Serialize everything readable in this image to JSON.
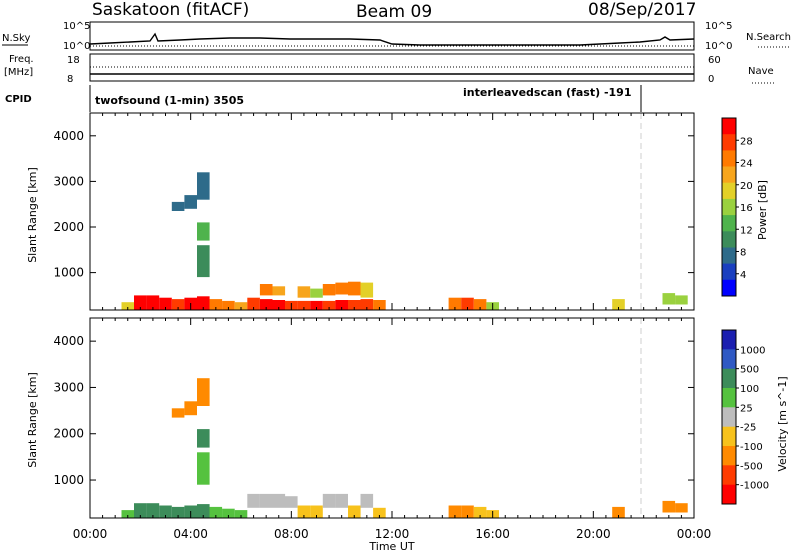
{
  "header": {
    "station": "Saskatoon (fitACF)",
    "beam": "Beam 09",
    "date": "08/Sep/2017"
  },
  "top_panels": {
    "nsky_label": "N.Sky",
    "nsky_ticks": [
      "10^5",
      "10^0"
    ],
    "nsearch_label": "N.Search",
    "nsearch_ticks": [
      "10^5",
      "10^0"
    ],
    "freq_label": "Freq.",
    "freq_unit": "[MHz]",
    "freq_ticks": [
      "18",
      "8"
    ],
    "nave_label": "Nave",
    "nave_ticks": [
      "60",
      "0"
    ],
    "cpid_label": "CPID",
    "cpid_programs": [
      {
        "name": "twofsound (1-min) 3505",
        "start_hour": 0
      },
      {
        "name": "interleavedscan (fast) -191",
        "start_hour": 22
      }
    ]
  },
  "chart_data": [
    {
      "type": "heatmap",
      "title": "",
      "xlabel": "Time UT",
      "ylabel": "Slant Range [km]",
      "xlim": [
        0,
        24
      ],
      "ylim": [
        180,
        4500
      ],
      "x_tick_labels": [
        "00:00",
        "04:00",
        "08:00",
        "12:00",
        "16:00",
        "20:00",
        "00:00"
      ],
      "y_ticks": [
        1000,
        2000,
        3000,
        4000
      ],
      "colorbar": {
        "label": "Power [dB]",
        "ticks": [
          "28",
          "24",
          "20",
          "16",
          "12",
          "8",
          "4"
        ],
        "range": [
          0,
          30
        ],
        "colors": [
          "#0000ff",
          "#1a3fbf",
          "#2e6b8a",
          "#3c8c5a",
          "#4fb34c",
          "#9ad13f",
          "#e3d028",
          "#f7a51c",
          "#ff7a00",
          "#ff3b00",
          "#ff0000"
        ]
      },
      "cells": [
        {
          "t": 1.5,
          "r0": 180,
          "r1": 350,
          "v": 18
        },
        {
          "t": 2.0,
          "r0": 180,
          "r1": 500,
          "v": 28
        },
        {
          "t": 2.5,
          "r0": 180,
          "r1": 500,
          "v": 29
        },
        {
          "t": 3.0,
          "r0": 180,
          "r1": 450,
          "v": 28
        },
        {
          "t": 3.5,
          "r0": 180,
          "r1": 420,
          "v": 27
        },
        {
          "t": 4.0,
          "r0": 180,
          "r1": 450,
          "v": 28
        },
        {
          "t": 4.5,
          "r0": 180,
          "r1": 480,
          "v": 29
        },
        {
          "t": 5.0,
          "r0": 180,
          "r1": 420,
          "v": 24
        },
        {
          "t": 5.5,
          "r0": 180,
          "r1": 380,
          "v": 22
        },
        {
          "t": 6.0,
          "r0": 180,
          "r1": 350,
          "v": 20
        },
        {
          "t": 6.5,
          "r0": 180,
          "r1": 450,
          "v": 27
        },
        {
          "t": 7.0,
          "r0": 180,
          "r1": 420,
          "v": 28
        },
        {
          "t": 7.5,
          "r0": 180,
          "r1": 400,
          "v": 28
        },
        {
          "t": 8.0,
          "r0": 180,
          "r1": 380,
          "v": 27
        },
        {
          "t": 8.5,
          "r0": 180,
          "r1": 380,
          "v": 26
        },
        {
          "t": 9.0,
          "r0": 180,
          "r1": 380,
          "v": 28
        },
        {
          "t": 9.5,
          "r0": 180,
          "r1": 380,
          "v": 27
        },
        {
          "t": 10.0,
          "r0": 180,
          "r1": 400,
          "v": 28
        },
        {
          "t": 10.5,
          "r0": 180,
          "r1": 400,
          "v": 26
        },
        {
          "t": 11.0,
          "r0": 180,
          "r1": 420,
          "v": 27
        },
        {
          "t": 11.5,
          "r0": 180,
          "r1": 400,
          "v": 24
        },
        {
          "t": 7.0,
          "r0": 500,
          "r1": 750,
          "v": 22
        },
        {
          "t": 7.5,
          "r0": 500,
          "r1": 700,
          "v": 20
        },
        {
          "t": 8.5,
          "r0": 450,
          "r1": 700,
          "v": 21
        },
        {
          "t": 9.0,
          "r0": 450,
          "r1": 650,
          "v": 16
        },
        {
          "t": 9.5,
          "r0": 500,
          "r1": 750,
          "v": 22
        },
        {
          "t": 10.0,
          "r0": 520,
          "r1": 780,
          "v": 24
        },
        {
          "t": 10.5,
          "r0": 500,
          "r1": 800,
          "v": 22
        },
        {
          "t": 11.0,
          "r0": 450,
          "r1": 780,
          "v": 18
        },
        {
          "t": 3.5,
          "r0": 2350,
          "r1": 2550,
          "v": 6
        },
        {
          "t": 4.0,
          "r0": 2400,
          "r1": 2700,
          "v": 8
        },
        {
          "t": 4.5,
          "r0": 2600,
          "r1": 3200,
          "v": 8
        },
        {
          "t": 4.5,
          "r0": 900,
          "r1": 1600,
          "v": 10
        },
        {
          "t": 4.5,
          "r0": 1700,
          "r1": 2100,
          "v": 12
        },
        {
          "t": 14.5,
          "r0": 180,
          "r1": 450,
          "v": 24
        },
        {
          "t": 15.0,
          "r0": 180,
          "r1": 450,
          "v": 26
        },
        {
          "t": 15.5,
          "r0": 180,
          "r1": 420,
          "v": 24
        },
        {
          "t": 16.0,
          "r0": 180,
          "r1": 350,
          "v": 14
        },
        {
          "t": 21.0,
          "r0": 180,
          "r1": 420,
          "v": 18
        },
        {
          "t": 23.0,
          "r0": 300,
          "r1": 550,
          "v": 16
        },
        {
          "t": 23.5,
          "r0": 300,
          "r1": 500,
          "v": 14
        }
      ]
    },
    {
      "type": "heatmap",
      "title": "",
      "xlabel": "Time UT",
      "ylabel": "Slant Range [km]",
      "xlim": [
        0,
        24
      ],
      "ylim": [
        180,
        4500
      ],
      "x_tick_labels": [
        "00:00",
        "04:00",
        "08:00",
        "12:00",
        "16:00",
        "20:00",
        "00:00"
      ],
      "y_ticks": [
        1000,
        2000,
        3000,
        4000
      ],
      "colorbar": {
        "label": "Velocity [m s^-1]",
        "ticks": [
          "1000",
          "500",
          "100",
          "25",
          "-25",
          "-100",
          "-500",
          "-1000"
        ],
        "colors": [
          "#1b1fb0",
          "#2f59c4",
          "#3c8c5a",
          "#55c23f",
          "#bdbdbd",
          "#f7c21c",
          "#ff8a00",
          "#ff3b00",
          "#ff0000"
        ]
      },
      "cells": [
        {
          "t": 1.5,
          "r0": 180,
          "r1": 350,
          "v": 60
        },
        {
          "t": 2.0,
          "r0": 180,
          "r1": 500,
          "v": 120
        },
        {
          "t": 2.5,
          "r0": 180,
          "r1": 500,
          "v": 200
        },
        {
          "t": 3.0,
          "r0": 180,
          "r1": 450,
          "v": 150
        },
        {
          "t": 3.5,
          "r0": 180,
          "r1": 420,
          "v": 120
        },
        {
          "t": 4.0,
          "r0": 180,
          "r1": 450,
          "v": 150
        },
        {
          "t": 4.5,
          "r0": 180,
          "r1": 480,
          "v": 300
        },
        {
          "t": 5.0,
          "r0": 180,
          "r1": 420,
          "v": 60
        },
        {
          "t": 5.5,
          "r0": 180,
          "r1": 380,
          "v": 40
        },
        {
          "t": 6.0,
          "r0": 180,
          "r1": 350,
          "v": 40
        },
        {
          "t": 6.5,
          "r0": 400,
          "r1": 700,
          "v": 0
        },
        {
          "t": 7.0,
          "r0": 400,
          "r1": 700,
          "v": 0
        },
        {
          "t": 7.5,
          "r0": 400,
          "r1": 700,
          "v": 0
        },
        {
          "t": 8.0,
          "r0": 400,
          "r1": 650,
          "v": 0
        },
        {
          "t": 8.5,
          "r0": 180,
          "r1": 450,
          "v": -60
        },
        {
          "t": 9.0,
          "r0": 180,
          "r1": 450,
          "v": -60
        },
        {
          "t": 9.5,
          "r0": 400,
          "r1": 700,
          "v": 0
        },
        {
          "t": 10.0,
          "r0": 400,
          "r1": 700,
          "v": 0
        },
        {
          "t": 10.5,
          "r0": 180,
          "r1": 450,
          "v": -60
        },
        {
          "t": 11.0,
          "r0": 400,
          "r1": 700,
          "v": 0
        },
        {
          "t": 11.5,
          "r0": 180,
          "r1": 400,
          "v": -60
        },
        {
          "t": 3.5,
          "r0": 2350,
          "r1": 2550,
          "v": -150
        },
        {
          "t": 4.0,
          "r0": 2400,
          "r1": 2700,
          "v": -150
        },
        {
          "t": 4.5,
          "r0": 2600,
          "r1": 3200,
          "v": -150
        },
        {
          "t": 4.5,
          "r0": 900,
          "r1": 1600,
          "v": 60
        },
        {
          "t": 4.5,
          "r0": 1700,
          "r1": 2100,
          "v": 120
        },
        {
          "t": 14.5,
          "r0": 180,
          "r1": 450,
          "v": -150
        },
        {
          "t": 15.0,
          "r0": 180,
          "r1": 450,
          "v": -150
        },
        {
          "t": 15.5,
          "r0": 180,
          "r1": 420,
          "v": -60
        },
        {
          "t": 16.0,
          "r0": 180,
          "r1": 350,
          "v": -60
        },
        {
          "t": 21.0,
          "r0": 180,
          "r1": 420,
          "v": -150
        },
        {
          "t": 23.0,
          "r0": 300,
          "r1": 550,
          "v": -150
        },
        {
          "t": 23.5,
          "r0": 300,
          "r1": 500,
          "v": -150
        }
      ]
    }
  ]
}
